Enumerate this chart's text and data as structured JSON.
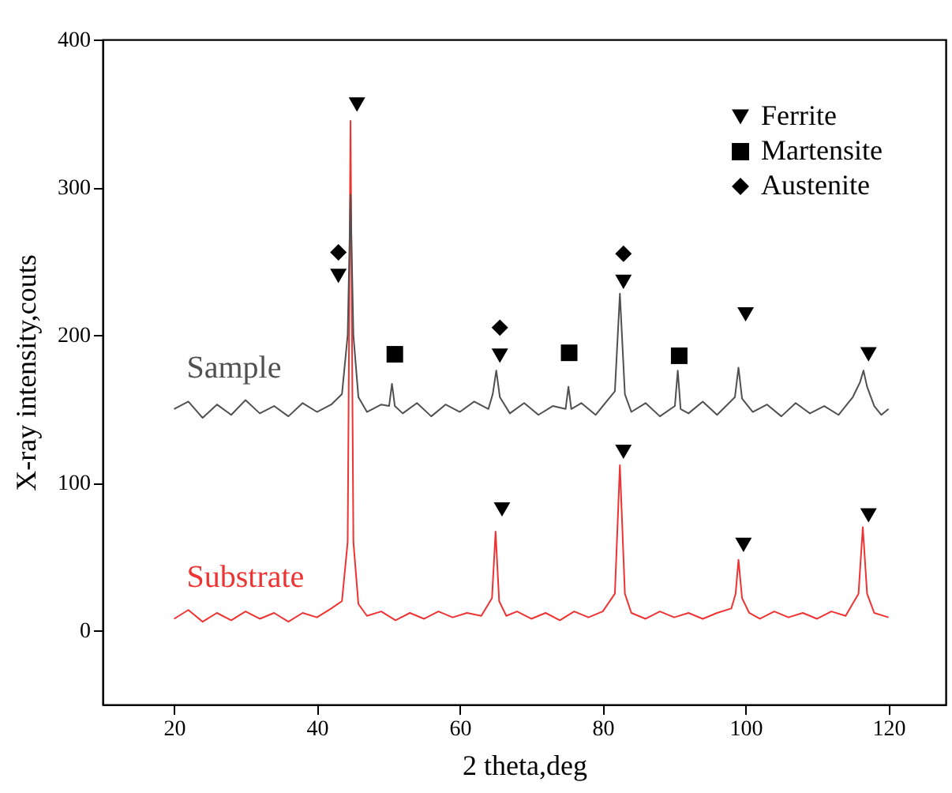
{
  "chart_data": {
    "type": "line",
    "xlabel": "2 theta,deg",
    "ylabel": "X-ray intensity,couts",
    "xlim": [
      10,
      128
    ],
    "ylim": [
      -50,
      400
    ],
    "xticks": [
      20,
      40,
      60,
      80,
      100,
      120
    ],
    "yticks": [
      0,
      100,
      200,
      300,
      400
    ],
    "grid": false,
    "legend": "top right",
    "series": [
      {
        "name": "Sample",
        "color": "#505050",
        "x": [
          20,
          22,
          24,
          26,
          28,
          30,
          32,
          34,
          36,
          38,
          40,
          42,
          43.5,
          44.3,
          44.7,
          45.1,
          45.8,
          47,
          49,
          50.1,
          50.5,
          50.9,
          52,
          54,
          56,
          58,
          60,
          62,
          64,
          64.6,
          65.1,
          65.6,
          67,
          69,
          71,
          73,
          74.8,
          75.2,
          75.6,
          77,
          79,
          81.7,
          82.4,
          83.1,
          84,
          86,
          88,
          90.1,
          90.5,
          90.9,
          92,
          94,
          96,
          98.5,
          99,
          99.5,
          101,
          103,
          105,
          107,
          109,
          111,
          113,
          115,
          116,
          116.5,
          117,
          118,
          119,
          120
        ],
        "values": [
          150,
          155,
          144,
          153,
          146,
          156,
          147,
          152,
          145,
          154,
          148,
          153,
          160,
          200,
          295,
          200,
          158,
          148,
          153,
          152,
          167,
          152,
          147,
          154,
          145,
          153,
          148,
          155,
          150,
          160,
          176,
          158,
          147,
          154,
          146,
          152,
          150,
          165,
          150,
          154,
          146,
          162,
          228,
          160,
          148,
          154,
          145,
          152,
          176,
          150,
          147,
          155,
          146,
          158,
          178,
          157,
          148,
          153,
          145,
          154,
          147,
          152,
          146,
          158,
          168,
          176,
          165,
          152,
          146,
          150
        ]
      },
      {
        "name": "Substrate",
        "color": "#ee3333",
        "x": [
          20,
          22,
          24,
          26,
          28,
          30,
          32,
          34,
          36,
          38,
          40,
          42,
          43.5,
          44.3,
          44.7,
          45.1,
          45.8,
          47,
          49,
          51,
          53,
          55,
          57,
          59,
          61,
          63,
          64.5,
          65,
          65.5,
          66.5,
          68,
          70,
          72,
          74,
          76,
          78,
          80,
          81.7,
          82.4,
          83.1,
          84,
          86,
          88,
          90,
          92,
          94,
          96,
          98,
          98.6,
          99,
          99.5,
          100.5,
          102,
          104,
          106,
          108,
          110,
          112,
          114,
          115.8,
          116.4,
          117,
          118,
          120
        ],
        "values": [
          8,
          14,
          6,
          12,
          7,
          13,
          8,
          12,
          6,
          12,
          9,
          15,
          20,
          60,
          345,
          60,
          18,
          10,
          13,
          7,
          12,
          8,
          13,
          9,
          12,
          10,
          22,
          67,
          20,
          10,
          13,
          8,
          12,
          7,
          13,
          9,
          13,
          25,
          112,
          25,
          12,
          8,
          13,
          9,
          12,
          8,
          12,
          15,
          25,
          48,
          22,
          12,
          8,
          13,
          9,
          12,
          8,
          13,
          10,
          25,
          70,
          25,
          12,
          9
        ]
      },
      {
        "name": "Ferrite",
        "type": "scatter",
        "marker": "triangle",
        "color": "#000000",
        "x": [
          45.6,
          43,
          65.6,
          82.9,
          100,
          117.2,
          65.9,
          82.9,
          99.7,
          117.2
        ],
        "values": [
          356,
          240,
          186,
          236,
          214,
          187,
          82,
          121,
          58,
          78
        ]
      },
      {
        "name": "Martensite",
        "type": "scatter",
        "marker": "square",
        "color": "#000000",
        "x": [
          50.9,
          75.3,
          90.7
        ],
        "values": [
          187,
          188,
          186
        ]
      },
      {
        "name": "Austenite",
        "type": "scatter",
        "marker": "diamond",
        "color": "#000000",
        "x": [
          43,
          65.6,
          82.9
        ],
        "values": [
          256,
          205,
          255
        ]
      }
    ]
  }
}
